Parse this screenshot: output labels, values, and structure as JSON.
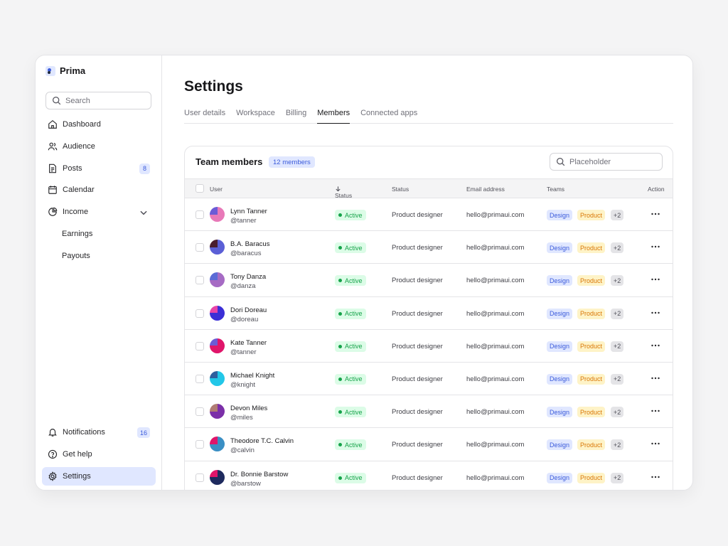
{
  "app": {
    "name": "Prima"
  },
  "sidebar": {
    "search_placeholder": "Search",
    "items": [
      {
        "label": "Dashboard",
        "icon": "home-icon"
      },
      {
        "label": "Audience",
        "icon": "users-icon"
      },
      {
        "label": "Posts",
        "icon": "document-icon",
        "count": "8"
      },
      {
        "label": "Calendar",
        "icon": "calendar-icon"
      },
      {
        "label": "Income",
        "icon": "pie-chart-icon"
      },
      {
        "label": "Earnings"
      },
      {
        "label": "Payouts"
      }
    ],
    "bottom": [
      {
        "label": "Notifications",
        "icon": "bell-icon",
        "count": "16"
      },
      {
        "label": "Get help",
        "icon": "help-icon"
      },
      {
        "label": "Settings",
        "icon": "gear-icon"
      }
    ]
  },
  "page": {
    "title": "Settings",
    "tabs": [
      "User details",
      "Workspace",
      "Billing",
      "Members",
      "Connected apps"
    ],
    "active_tab": "Members"
  },
  "team": {
    "title": "Team members",
    "count_label": "12 members",
    "search_placeholder": "Placeholder",
    "columns": [
      "User",
      "Status",
      "Status",
      "Email address",
      "Teams",
      "Action"
    ],
    "members": [
      {
        "name": "Lynn Tanner",
        "handle": "@tanner",
        "status": "Active",
        "role": "Product designer",
        "email": "hello@primaui.com",
        "teams": [
          "Design",
          "Product",
          "+2"
        ],
        "colors": [
          "#6b5bd6",
          "#e879b8"
        ]
      },
      {
        "name": "B.A. Baracus",
        "handle": "@baracus",
        "status": "Active",
        "role": "Product designer",
        "email": "hello@primaui.com",
        "teams": [
          "Design",
          "Product",
          "+2"
        ],
        "colors": [
          "#4a1d2f",
          "#5b5fd6"
        ]
      },
      {
        "name": "Tony Danza",
        "handle": "@danza",
        "status": "Active",
        "role": "Product designer",
        "email": "hello@primaui.com",
        "teams": [
          "Design",
          "Product",
          "+2"
        ],
        "colors": [
          "#5b6bd6",
          "#a66bc4"
        ]
      },
      {
        "name": "Dori Doreau",
        "handle": "@doreau",
        "status": "Active",
        "role": "Product designer",
        "email": "hello@primaui.com",
        "teams": [
          "Design",
          "Product",
          "+2"
        ],
        "colors": [
          "#e845a8",
          "#3b2fd6"
        ]
      },
      {
        "name": "Kate Tanner",
        "handle": "@tanner",
        "status": "Active",
        "role": "Product designer",
        "email": "hello@primaui.com",
        "teams": [
          "Design",
          "Product",
          "+2"
        ],
        "colors": [
          "#6b5bd6",
          "#e0156a"
        ]
      },
      {
        "name": "Michael Knight",
        "handle": "@knight",
        "status": "Active",
        "role": "Product designer",
        "email": "hello@primaui.com",
        "teams": [
          "Design",
          "Product",
          "+2"
        ],
        "colors": [
          "#2f5f9e",
          "#22c7e8"
        ]
      },
      {
        "name": "Devon Miles",
        "handle": "@miles",
        "status": "Active",
        "role": "Product designer",
        "email": "hello@primaui.com",
        "teams": [
          "Design",
          "Product",
          "+2"
        ],
        "colors": [
          "#b07c74",
          "#7b2fa8"
        ]
      },
      {
        "name": "Theodore T.C. Calvin",
        "handle": "@calvin",
        "status": "Active",
        "role": "Product designer",
        "email": "hello@primaui.com",
        "teams": [
          "Design",
          "Product",
          "+2"
        ],
        "colors": [
          "#e0156a",
          "#3a8fc4"
        ]
      },
      {
        "name": "Dr. Bonnie Barstow",
        "handle": "@barstow",
        "status": "Active",
        "role": "Product designer",
        "email": "hello@primaui.com",
        "teams": [
          "Design",
          "Product",
          "+2"
        ],
        "colors": [
          "#e0156a",
          "#1e2a5e"
        ]
      }
    ]
  }
}
